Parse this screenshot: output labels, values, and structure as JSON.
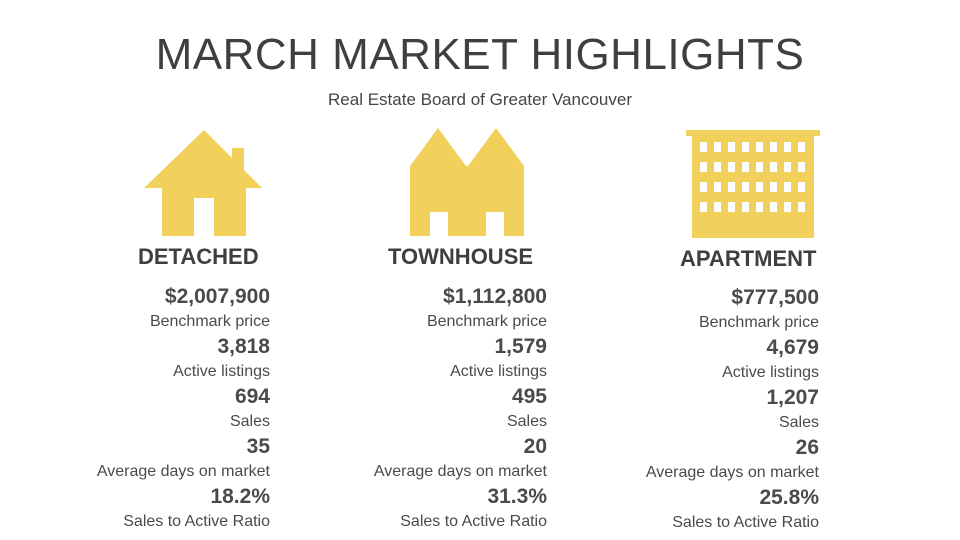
{
  "header": {
    "title": "MARCH MARKET HIGHLIGHTS",
    "subtitle": "Real Estate Board of Greater Vancouver"
  },
  "colors": {
    "icon": "#f1d05c",
    "text": "#4a4a4a"
  },
  "columns": [
    {
      "icon": "house-icon",
      "category": "DETACHED",
      "stats": [
        {
          "value": "$2,007,900",
          "label": "Benchmark price"
        },
        {
          "value": "3,818",
          "label": "Active listings"
        },
        {
          "value": "694",
          "label": "Sales"
        },
        {
          "value": "35",
          "label": "Average days on market"
        },
        {
          "value": "18.2%",
          "label": "Sales to Active Ratio"
        }
      ]
    },
    {
      "icon": "townhouse-icon",
      "category": "TOWNHOUSE",
      "stats": [
        {
          "value": "$1,112,800",
          "label": "Benchmark price"
        },
        {
          "value": "1,579",
          "label": "Active listings"
        },
        {
          "value": "495",
          "label": "Sales"
        },
        {
          "value": "20",
          "label": "Average days on market"
        },
        {
          "value": "31.3%",
          "label": "Sales to Active Ratio"
        }
      ]
    },
    {
      "icon": "apartment-building-icon",
      "category": "APARTMENT",
      "stats": [
        {
          "value": "$777,500",
          "label": "Benchmark price"
        },
        {
          "value": "4,679",
          "label": "Active listings"
        },
        {
          "value": "1,207",
          "label": "Sales"
        },
        {
          "value": "26",
          "label": "Average days on market"
        },
        {
          "value": "25.8%",
          "label": "Sales to Active Ratio"
        }
      ]
    }
  ]
}
